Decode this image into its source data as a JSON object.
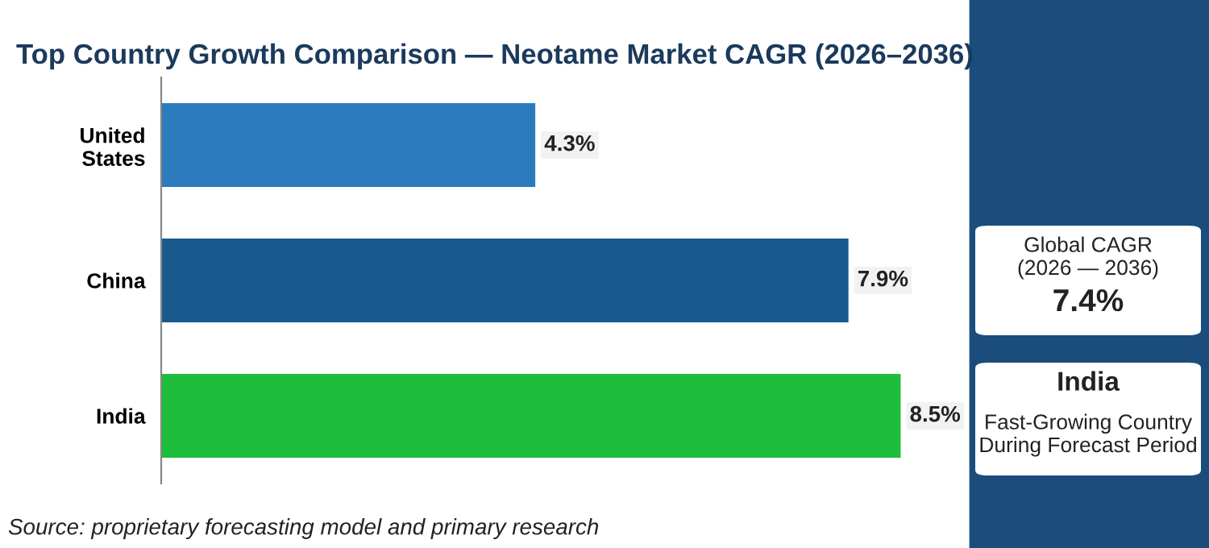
{
  "chart_data": [
    {
      "type": "bar",
      "orientation": "horizontal",
      "title": "Top Country Growth Comparison — Neotame Market CAGR (2026–2036)",
      "categories": [
        "United\nStates",
        "China",
        "India"
      ],
      "values": [
        4.3,
        7.9,
        8.5
      ],
      "colors": [
        "#2b7bbd",
        "#185a8d",
        "#1fbd3c"
      ],
      "value_labels": [
        "4.3%",
        "7.9%",
        "8.5%"
      ],
      "tick_labels": "y",
      "grid": false,
      "legend": false,
      "annotations": [
        "Source: proprietary forecasting model and primary research"
      ]
    },
    {
      "type": "other",
      "annotations": [
        "Global CAGR\n(2026 — 2036)",
        "7.4%",
        "India",
        "Fast-Growing Country\nDuring Forecast Period"
      ]
    }
  ]
}
